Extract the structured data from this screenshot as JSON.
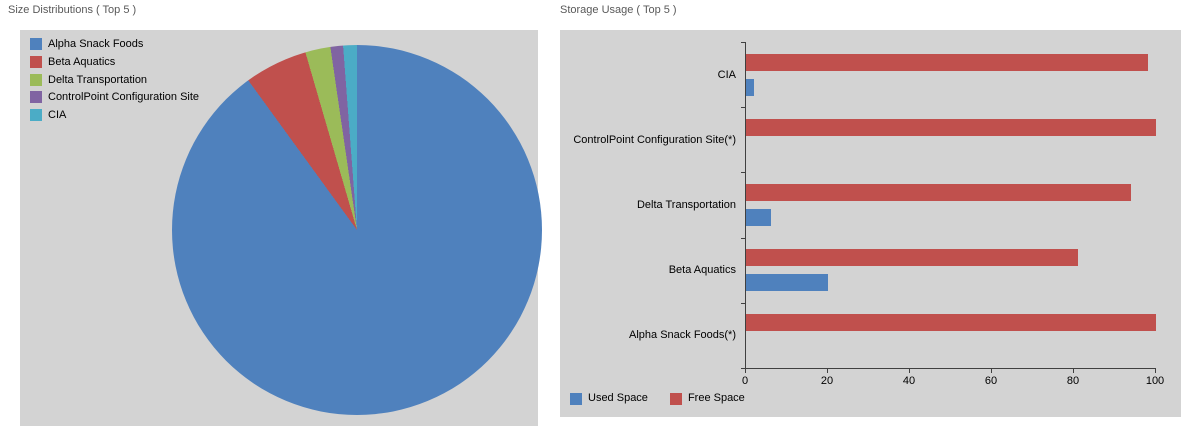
{
  "page": {
    "background": "#ffffff",
    "panel_background": "#d3d3d3"
  },
  "left_panel": {
    "title": "Size Distributions ( Top 5 )",
    "chart_data": {
      "type": "pie",
      "labels": [
        "Alpha Snack Foods",
        "Beta Aquatics",
        "Delta Transportation",
        "ControlPoint Configuration Site",
        "CIA"
      ],
      "values": [
        90.0,
        5.5,
        2.2,
        1.1,
        1.2
      ],
      "colors": [
        "#4F81BD",
        "#C0504D",
        "#9BBB59",
        "#8064A2",
        "#4BACC6"
      ],
      "legend_position": "top-left"
    }
  },
  "right_panel": {
    "title": "Storage Usage ( Top 5 )",
    "chart_data": {
      "type": "bar",
      "orientation": "horizontal",
      "categories": [
        "CIA",
        "ControlPoint Configuration Site(*)",
        "Delta Transportation",
        "Beta Aquatics",
        "Alpha Snack Foods(*)"
      ],
      "series": [
        {
          "name": "Used Space",
          "color": "#4F81BD",
          "values": [
            2,
            0,
            6,
            20,
            0
          ]
        },
        {
          "name": "Free Space",
          "color": "#C0504D",
          "values": [
            98,
            100,
            94,
            81,
            100
          ]
        }
      ],
      "xlim": [
        0,
        100
      ],
      "x_ticks": [
        0,
        20,
        40,
        60,
        80,
        100
      ],
      "legend_position": "bottom-left"
    }
  }
}
